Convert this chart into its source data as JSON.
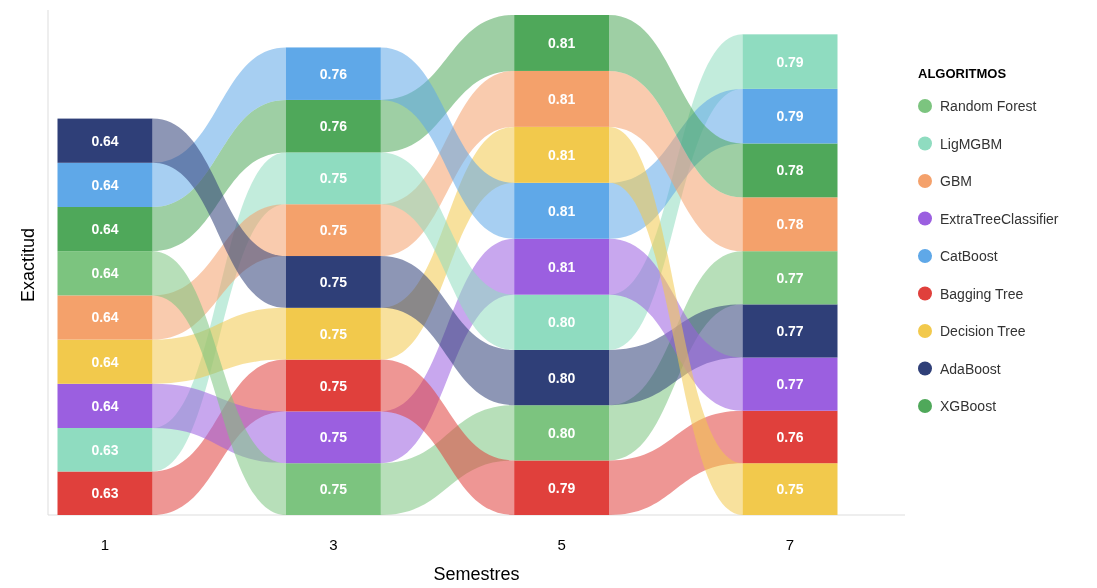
{
  "chart_data": {
    "type": "bar",
    "stacked": true,
    "xlabel": "Semestres",
    "ylabel": "Exactitud",
    "legend_title": "ALGORITMOS",
    "legend": "right",
    "categories": [
      "1",
      "3",
      "5",
      "7"
    ],
    "series": [
      {
        "colors": [
          "#e0403c",
          "#7cc47f",
          "#e0403c",
          "#f2c94c"
        ],
        "values": [
          0.63,
          0.75,
          0.79,
          0.75
        ],
        "value_labels": [
          "0.63",
          "0.75",
          "0.79",
          "0.75"
        ]
      },
      {
        "colors": [
          "#8fdcc0",
          "#9b5fe0",
          "#7cc47f",
          "#e0403c"
        ],
        "values": [
          0.63,
          0.75,
          0.8,
          0.76
        ],
        "value_labels": [
          "0.63",
          "0.75",
          "0.80",
          "0.76"
        ]
      },
      {
        "colors": [
          "#9b5fe0",
          "#e0403c",
          "#2f3f78",
          "#9b5fe0"
        ],
        "values": [
          0.64,
          0.75,
          0.8,
          0.77
        ],
        "value_labels": [
          "0.64",
          "0.75",
          "0.80",
          "0.77"
        ]
      },
      {
        "colors": [
          "#f2c94c",
          "#f2c94c",
          "#8fdcc0",
          "#2f3f78"
        ],
        "values": [
          0.64,
          0.75,
          0.8,
          0.77
        ],
        "value_labels": [
          "0.64",
          "0.75",
          "0.80",
          "0.77"
        ]
      },
      {
        "colors": [
          "#f4a16b",
          "#2f3f78",
          "#9b5fe0",
          "#7cc47f"
        ],
        "values": [
          0.64,
          0.75,
          0.81,
          0.77
        ],
        "value_labels": [
          "0.64",
          "0.75",
          "0.81",
          "0.77"
        ]
      },
      {
        "colors": [
          "#7cc47f",
          "#f4a16b",
          "#5fa8e8",
          "#f4a16b"
        ],
        "values": [
          0.64,
          0.75,
          0.81,
          0.78
        ],
        "value_labels": [
          "0.64",
          "0.75",
          "0.81",
          "0.78"
        ]
      },
      {
        "colors": [
          "#4fa85a",
          "#8fdcc0",
          "#f2c94c",
          "#4fa85a"
        ],
        "values": [
          0.64,
          0.75,
          0.81,
          0.78
        ],
        "value_labels": [
          "0.64",
          "0.75",
          "0.81",
          "0.78"
        ]
      },
      {
        "colors": [
          "#5fa8e8",
          "#4fa85a",
          "#f4a16b",
          "#5fa8e8"
        ],
        "values": [
          0.64,
          0.76,
          0.81,
          0.79
        ],
        "value_labels": [
          "0.64",
          "0.76",
          "0.81",
          "0.79"
        ]
      },
      {
        "colors": [
          "#2f3f78",
          "#5fa8e8",
          "#4fa85a",
          "#8fdcc0"
        ],
        "values": [
          0.64,
          0.76,
          0.81,
          0.79
        ],
        "value_labels": [
          "0.64",
          "0.76",
          "0.81",
          "0.79"
        ]
      },
      {
        "name": "Random Forest",
        "color": "#7cc47f",
        "values": [
          null,
          null,
          null,
          null
        ]
      },
      {
        "name": "LigMGBM",
        "color": "#8fdcc0",
        "values": [
          null,
          null,
          null,
          null
        ]
      },
      {
        "name": "GBM",
        "color": "#f4a16b",
        "values": [
          null,
          null,
          null,
          null
        ]
      },
      {
        "name": "ExtraTreeClassifier",
        "color": "#9b5fe0",
        "values": [
          null,
          null,
          null,
          null
        ]
      },
      {
        "name": "CatBoost",
        "color": "#5fa8e8",
        "values": [
          null,
          null,
          null,
          null
        ]
      },
      {
        "name": "Bagging Tree",
        "color": "#e0403c",
        "values": [
          null,
          null,
          null,
          null
        ]
      },
      {
        "name": "Decision Tree",
        "color": "#f2c94c",
        "values": [
          null,
          null,
          null,
          null
        ]
      },
      {
        "name": "AdaBoost",
        "color": "#2f3f78",
        "values": [
          null,
          null,
          null,
          null
        ]
      },
      {
        "name": "XGBoost",
        "color": "#4fa85a",
        "values": [
          null,
          null,
          null,
          null
        ]
      }
    ]
  }
}
